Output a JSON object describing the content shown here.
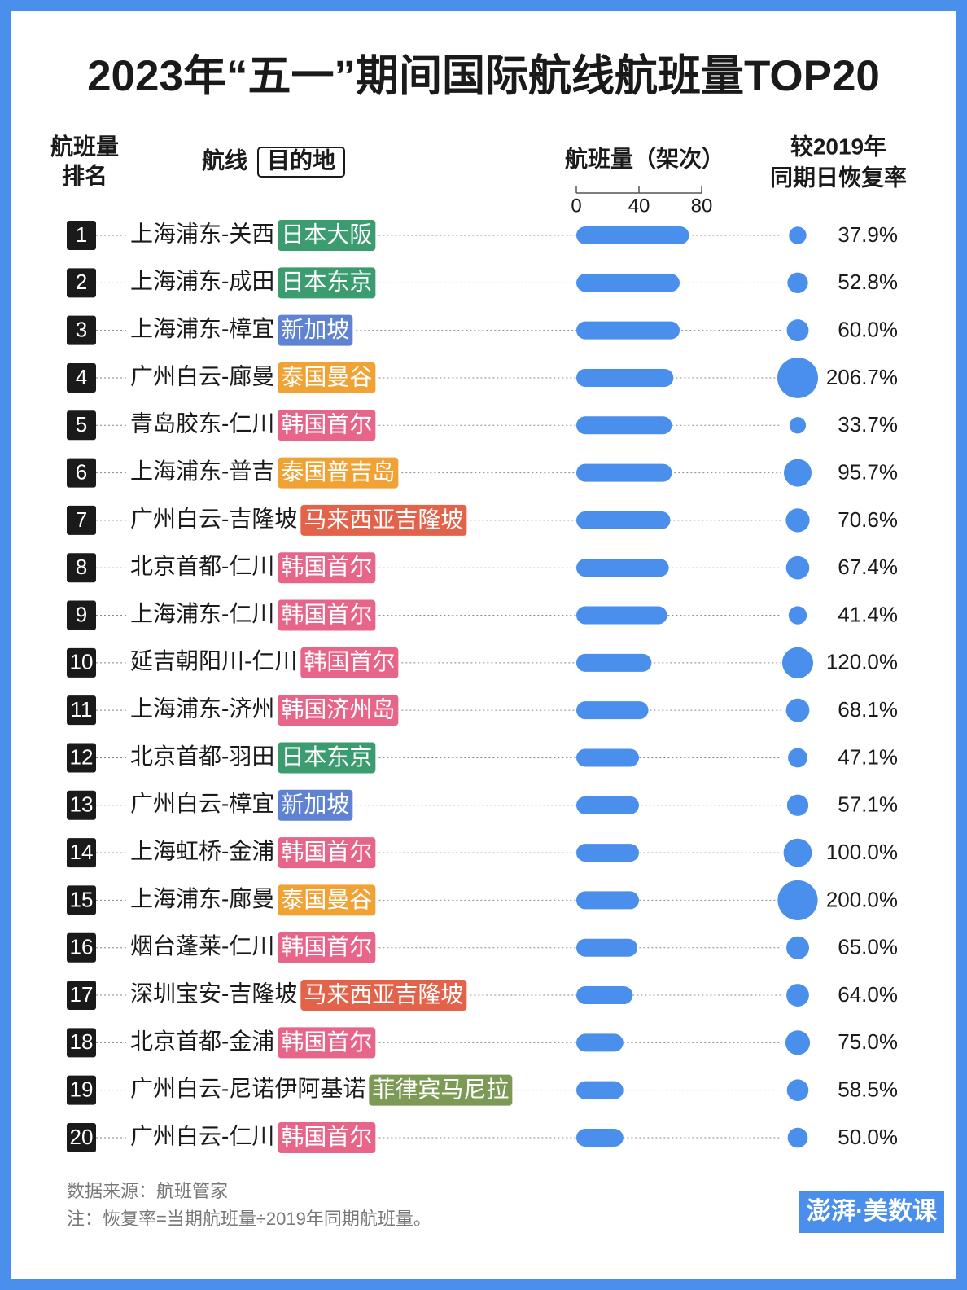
{
  "chart_data": {
    "type": "bar",
    "title": "2023年“五一”期间国际航线航班量TOP20",
    "rank_header": [
      "航班量",
      "排名"
    ],
    "route_header": "航线",
    "destination_header": "目的地",
    "value_header": "航班量（架次）",
    "rate_header": [
      "较2019年",
      "同期日恢复率"
    ],
    "ranks": [
      1,
      2,
      3,
      4,
      5,
      6,
      7,
      8,
      9,
      10,
      11,
      12,
      13,
      14,
      15,
      16,
      17,
      18,
      19,
      20
    ],
    "routes": [
      "上海浦东-关西",
      "上海浦东-成田",
      "上海浦东-樟宜",
      "广州白云-廊曼",
      "青岛胶东-仁川",
      "上海浦东-普吉",
      "广州白云-吉隆坡",
      "北京首都-仁川",
      "上海浦东-仁川",
      "延吉朝阳川-仁川",
      "上海浦东-济州",
      "北京首都-羽田",
      "广州白云-樟宜",
      "上海虹桥-金浦",
      "上海浦东-廊曼",
      "烟台蓬莱-仁川",
      "深圳宝安-吉隆坡",
      "北京首都-金浦",
      "广州白云-尼诺伊阿基诺",
      "广州白云-仁川"
    ],
    "destinations": [
      "日本大阪",
      "日本东京",
      "新加坡",
      "泰国曼谷",
      "韩国首尔",
      "泰国普吉岛",
      "马来西亚吉隆坡",
      "韩国首尔",
      "韩国首尔",
      "韩国首尔",
      "韩国济州岛",
      "日本东京",
      "新加坡",
      "韩国首尔",
      "泰国曼谷",
      "韩国首尔",
      "马来西亚吉隆坡",
      "韩国首尔",
      "菲律宾马尼拉",
      "韩国首尔"
    ],
    "destination_colors": [
      "#3b9c6f",
      "#3b9c6f",
      "#5f82d3",
      "#f0a234",
      "#e8658a",
      "#f0a234",
      "#e2634a",
      "#e8658a",
      "#e8658a",
      "#e8658a",
      "#e8658a",
      "#3b9c6f",
      "#5f82d3",
      "#e8658a",
      "#f0a234",
      "#e8658a",
      "#e2634a",
      "#e8658a",
      "#7c9a55",
      "#e8658a"
    ],
    "values": [
      72,
      66,
      66,
      62,
      61,
      61,
      60,
      59,
      58,
      48,
      46,
      40,
      40,
      40,
      40,
      39,
      36,
      30,
      30,
      30
    ],
    "color": "#4a8fec",
    "xlim": [
      0,
      80
    ],
    "xticks": [
      0,
      40,
      80
    ],
    "rate_values": [
      37.9,
      52.8,
      60.0,
      206.7,
      33.7,
      95.7,
      70.6,
      67.4,
      41.4,
      120.0,
      68.1,
      47.1,
      57.1,
      100.0,
      200.0,
      65.0,
      64.0,
      75.0,
      58.5,
      50.0
    ],
    "rate_labels": [
      "37.9%",
      "52.8%",
      "60.0%",
      "206.7%",
      "33.7%",
      "95.7%",
      "70.6%",
      "67.4%",
      "41.4%",
      "120.0%",
      "68.1%",
      "47.1%",
      "57.1%",
      "100.0%",
      "200.0%",
      "65.0%",
      "64.0%",
      "75.0%",
      "58.5%",
      "50.0%"
    ],
    "source": "数据来源：航班管家",
    "note": "注：恢复率=当期航班量÷2019年同期航班量。",
    "logo": "澎湃·美数课"
  }
}
